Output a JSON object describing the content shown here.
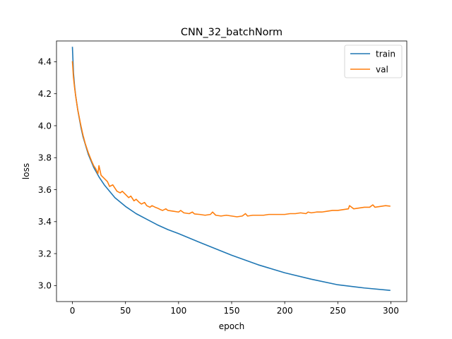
{
  "chart_data": {
    "type": "line",
    "title": "CNN_32_batchNorm",
    "xlabel": "epoch",
    "ylabel": "loss",
    "xlim": [
      -15,
      315
    ],
    "ylim": [
      2.9,
      4.53
    ],
    "xticks": [
      0,
      50,
      100,
      150,
      200,
      250,
      300
    ],
    "yticks": [
      3.0,
      3.2,
      3.4,
      3.6,
      3.8,
      4.0,
      4.2,
      4.4
    ],
    "ytick_labels": [
      "3.0",
      "3.2",
      "3.4",
      "3.6",
      "3.8",
      "4.0",
      "4.2",
      "4.4"
    ],
    "grid": false,
    "legend_position": "top-right",
    "series": [
      {
        "name": "train",
        "color": "#1f77b4",
        "x": [
          0,
          1,
          2,
          3,
          5,
          8,
          10,
          15,
          20,
          25,
          30,
          40,
          50,
          60,
          70,
          80,
          90,
          100,
          120,
          150,
          175,
          200,
          225,
          250,
          275,
          299
        ],
        "y": [
          4.49,
          4.33,
          4.25,
          4.19,
          4.1,
          3.99,
          3.93,
          3.82,
          3.74,
          3.68,
          3.63,
          3.55,
          3.495,
          3.45,
          3.415,
          3.38,
          3.35,
          3.325,
          3.27,
          3.19,
          3.13,
          3.08,
          3.04,
          3.005,
          2.985,
          2.97
        ]
      },
      {
        "name": "val",
        "color": "#ff7f0e",
        "x": [
          0,
          1,
          2,
          3,
          5,
          8,
          10,
          12,
          15,
          18,
          20,
          22,
          24,
          25,
          27,
          30,
          33,
          35,
          38,
          40,
          42,
          45,
          47,
          50,
          53,
          55,
          58,
          60,
          63,
          65,
          68,
          70,
          73,
          75,
          78,
          80,
          83,
          85,
          88,
          90,
          95,
          100,
          102,
          105,
          110,
          113,
          115,
          120,
          125,
          130,
          132,
          135,
          140,
          145,
          150,
          155,
          160,
          163,
          165,
          170,
          175,
          180,
          185,
          190,
          195,
          200,
          205,
          210,
          215,
          220,
          222,
          225,
          230,
          235,
          240,
          245,
          250,
          255,
          260,
          261,
          265,
          270,
          275,
          280,
          283,
          285,
          290,
          295,
          299
        ],
        "y": [
          4.4,
          4.3,
          4.24,
          4.19,
          4.1,
          4.0,
          3.94,
          3.89,
          3.83,
          3.78,
          3.75,
          3.73,
          3.7,
          3.75,
          3.69,
          3.67,
          3.65,
          3.62,
          3.63,
          3.61,
          3.59,
          3.58,
          3.59,
          3.57,
          3.55,
          3.56,
          3.53,
          3.54,
          3.52,
          3.51,
          3.52,
          3.5,
          3.49,
          3.5,
          3.49,
          3.485,
          3.475,
          3.47,
          3.48,
          3.47,
          3.465,
          3.46,
          3.47,
          3.455,
          3.45,
          3.46,
          3.448,
          3.445,
          3.44,
          3.445,
          3.46,
          3.44,
          3.435,
          3.44,
          3.435,
          3.43,
          3.435,
          3.45,
          3.435,
          3.44,
          3.44,
          3.44,
          3.445,
          3.445,
          3.445,
          3.445,
          3.45,
          3.45,
          3.455,
          3.45,
          3.46,
          3.455,
          3.46,
          3.46,
          3.465,
          3.47,
          3.47,
          3.475,
          3.48,
          3.5,
          3.48,
          3.485,
          3.49,
          3.49,
          3.505,
          3.49,
          3.495,
          3.5,
          3.497
        ]
      }
    ]
  }
}
